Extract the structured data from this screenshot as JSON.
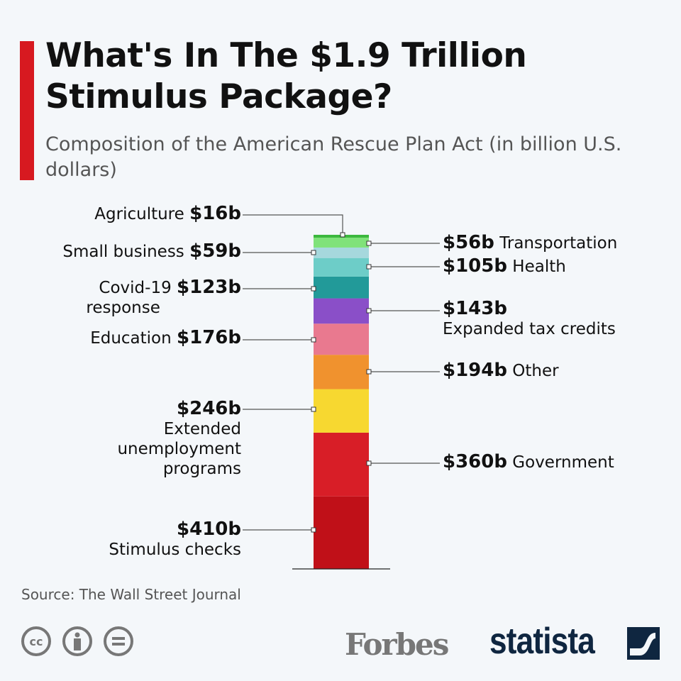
{
  "header": {
    "title": "What's In The $1.9 Trillion Stimulus Package?",
    "subtitle": "Composition of the American Rescue Plan Act (in billion U.S. dollars)"
  },
  "chart_data": {
    "type": "bar",
    "stacked": true,
    "title": "What's In The $1.9 Trillion Stimulus Package?",
    "subtitle": "Composition of the American Rescue Plan Act (in billion U.S. dollars)",
    "unit": "billion U.S. dollars",
    "items": [
      {
        "name": "Stimulus checks",
        "value": 410,
        "value_label": "$410b",
        "color": "#c01018",
        "side": "left"
      },
      {
        "name": "Government",
        "value": 360,
        "value_label": "$360b",
        "color": "#d81e27",
        "side": "right"
      },
      {
        "name": "Extended unemployment programs",
        "value": 246,
        "value_label": "$246b",
        "color": "#f7d830",
        "side": "left"
      },
      {
        "name": "Other",
        "value": 194,
        "value_label": "$194b",
        "color": "#f0922e",
        "side": "right"
      },
      {
        "name": "Education",
        "value": 176,
        "value_label": "$176b",
        "color": "#e9798f",
        "side": "left"
      },
      {
        "name": "Expanded tax credits",
        "value": 143,
        "value_label": "$143b",
        "color": "#8a4fc8",
        "side": "right"
      },
      {
        "name": "Covid-19 response",
        "value": 123,
        "value_label": "$123b",
        "color": "#229a99",
        "side": "left"
      },
      {
        "name": "Health",
        "value": 105,
        "value_label": "$105b",
        "color": "#6dcdc8",
        "side": "right"
      },
      {
        "name": "Small business",
        "value": 59,
        "value_label": "$59b",
        "color": "#a6d8dd",
        "side": "left"
      },
      {
        "name": "Transportation",
        "value": 56,
        "value_label": "$56b",
        "color": "#80e27a",
        "side": "right"
      },
      {
        "name": "Agriculture",
        "value": 16,
        "value_label": "$16b",
        "color": "#3cb83e",
        "side": "left"
      }
    ]
  },
  "footer": {
    "source": "Source: The Wall Street Journal",
    "cc": "cc",
    "forbes": "Forbes",
    "statista": "statista"
  }
}
